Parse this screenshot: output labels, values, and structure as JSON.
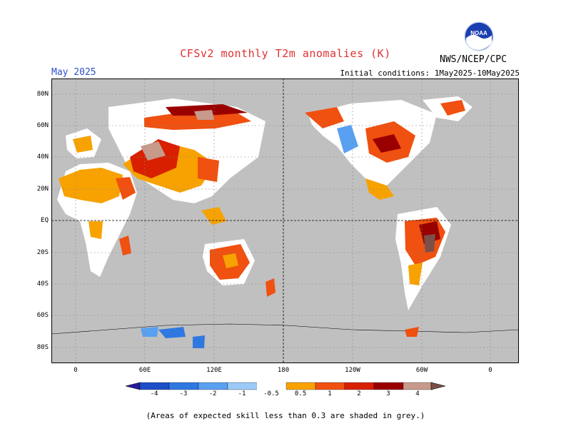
{
  "header": {
    "title": "CFSv2 monthly T2m anomalies (K)",
    "month": "May 2025",
    "initial_conditions": "Initial conditions: 1May2025-10May2025",
    "agency": "NWS/NCEP/CPC",
    "logo_text": "NOAA"
  },
  "axes": {
    "lat_labels": [
      "80N",
      "60N",
      "40N",
      "20N",
      "EQ",
      "20S",
      "40S",
      "60S",
      "80S"
    ],
    "lon_labels": [
      "0",
      "60E",
      "120E",
      "180",
      "120W",
      "60W",
      "0"
    ]
  },
  "colorbar": {
    "labels": [
      "-4",
      "-3",
      "-2",
      "-1",
      "-0.5",
      "0.5",
      "1",
      "2",
      "3",
      "4"
    ],
    "colors": [
      "#2a1a9e",
      "#1c4fc8",
      "#2f78e0",
      "#5aa0f0",
      "#9ccaf8",
      "#ffffff",
      "#f7a200",
      "#f05010",
      "#d82000",
      "#9a0000",
      "#c79a8c",
      "#7a5048"
    ]
  },
  "footnote": "(Areas of expected skill less than 0.3 are shaded in grey.)",
  "colors": {
    "grey_skill": "#c0c0c0",
    "title": "#e03030",
    "month": "#3050c8"
  }
}
